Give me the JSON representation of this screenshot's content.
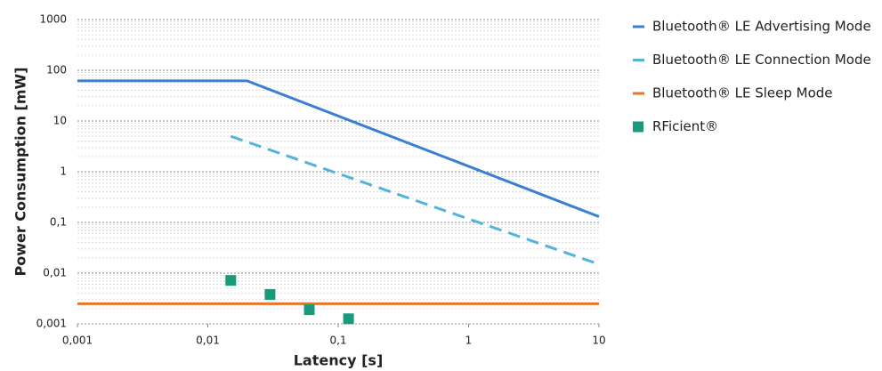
{
  "chart_data": {
    "type": "line",
    "x_label": "Latency [s]",
    "y_label": "Power Consumption [mW]",
    "xlog": true,
    "ylog": true,
    "grid": true,
    "minor_grid": true,
    "legend": "right",
    "xlim": [
      0.001,
      10
    ],
    "ylim": [
      0.001,
      1000
    ],
    "xticks": [
      {
        "value": 0.001,
        "label": "0,001"
      },
      {
        "value": 0.01,
        "label": "0,01"
      },
      {
        "value": 0.1,
        "label": "0,1"
      },
      1,
      10
    ],
    "yticks": [
      {
        "value": 0.001,
        "label": "0,001"
      },
      {
        "value": 0.01,
        "label": "0,01"
      },
      {
        "value": 0.1,
        "label": "0,1"
      },
      1,
      10,
      100,
      1000
    ],
    "series": [
      {
        "name": "Bluetooth® LE Advertising Mode",
        "color": "#3a7fd5",
        "style": "solid",
        "x": [
          0.001,
          0.02,
          10
        ],
        "values": [
          62,
          62,
          0.13
        ]
      },
      {
        "name": "Bluetooth® LE Connection Mode",
        "color": "#52b4d8",
        "style": "dashed",
        "x": [
          0.015,
          10
        ],
        "values": [
          5,
          0.015
        ]
      },
      {
        "name": "Bluetooth® LE Sleep Mode",
        "color": "#e8752a",
        "style": "solid",
        "x": [
          0.001,
          10
        ],
        "values": [
          0.0025,
          0.0025
        ]
      },
      {
        "name": "RFicient®",
        "color": "#1a9a7a",
        "style": "square",
        "x": [
          0.015,
          0.03,
          0.06,
          0.12
        ],
        "values": [
          0.0072,
          0.0038,
          0.0019,
          0.00126
        ]
      }
    ]
  }
}
